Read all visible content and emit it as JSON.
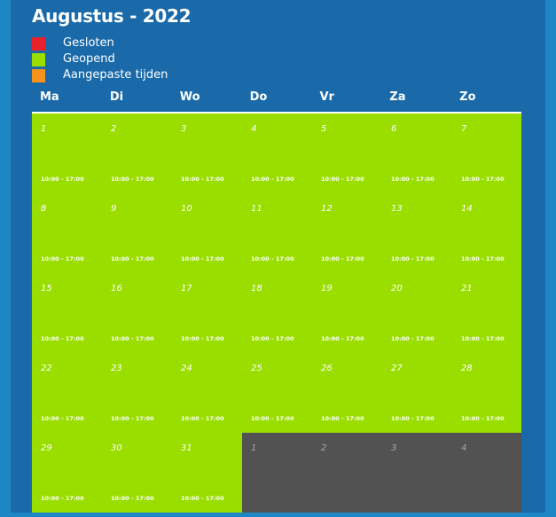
{
  "calendar": {
    "title": "Augustus - 2022",
    "legend": [
      {
        "label": "Gesloten",
        "color": "#e8212b"
      },
      {
        "label": "Geopend",
        "color": "#9ade00"
      },
      {
        "label": "Aangepaste tijden",
        "color": "#f5931e"
      }
    ],
    "weekdays": [
      "Ma",
      "Di",
      "Wo",
      "Do",
      "Vr",
      "Za",
      "Zo"
    ],
    "weeks": [
      [
        {
          "day": "1",
          "status": "open",
          "hours": "10:00 - 17:00"
        },
        {
          "day": "2",
          "status": "open",
          "hours": "10:00 - 17:00"
        },
        {
          "day": "3",
          "status": "open",
          "hours": "10:00 - 17:00"
        },
        {
          "day": "4",
          "status": "open",
          "hours": "10:00 - 17:00"
        },
        {
          "day": "5",
          "status": "open",
          "hours": "10:00 - 17:00"
        },
        {
          "day": "6",
          "status": "open",
          "hours": "10:00 - 17:00"
        },
        {
          "day": "7",
          "status": "open",
          "hours": "10:00 - 17:00"
        }
      ],
      [
        {
          "day": "8",
          "status": "open",
          "hours": "10:00 - 17:00"
        },
        {
          "day": "9",
          "status": "open",
          "hours": "10:00 - 17:00"
        },
        {
          "day": "10",
          "status": "open",
          "hours": "10:00 - 17:00"
        },
        {
          "day": "11",
          "status": "open",
          "hours": "10:00 - 17:00"
        },
        {
          "day": "12",
          "status": "open",
          "hours": "10:00 - 17:00"
        },
        {
          "day": "13",
          "status": "open",
          "hours": "10:00 - 17:00"
        },
        {
          "day": "14",
          "status": "open",
          "hours": "10:00 - 17:00"
        }
      ],
      [
        {
          "day": "15",
          "status": "open",
          "hours": "10:00 - 17:00"
        },
        {
          "day": "16",
          "status": "open",
          "hours": "10:00 - 17:00"
        },
        {
          "day": "17",
          "status": "open",
          "hours": "10:00 - 17:00"
        },
        {
          "day": "18",
          "status": "open",
          "hours": "10:00 - 17:00"
        },
        {
          "day": "19",
          "status": "open",
          "hours": "10:00 - 17:00"
        },
        {
          "day": "20",
          "status": "open",
          "hours": "10:00 - 17:00"
        },
        {
          "day": "21",
          "status": "open",
          "hours": "10:00 - 17:00"
        }
      ],
      [
        {
          "day": "22",
          "status": "open",
          "hours": "10:00 - 17:00"
        },
        {
          "day": "23",
          "status": "open",
          "hours": "10:00 - 17:00"
        },
        {
          "day": "24",
          "status": "open",
          "hours": "10:00 - 17:00"
        },
        {
          "day": "25",
          "status": "open",
          "hours": "10:00 - 17:00"
        },
        {
          "day": "26",
          "status": "open",
          "hours": "10:00 - 17:00"
        },
        {
          "day": "27",
          "status": "open",
          "hours": "10:00 - 17:00"
        },
        {
          "day": "28",
          "status": "open",
          "hours": "10:00 - 17:00"
        }
      ],
      [
        {
          "day": "29",
          "status": "open",
          "hours": "10:00 - 17:00"
        },
        {
          "day": "30",
          "status": "open",
          "hours": "10:00 - 17:00"
        },
        {
          "day": "31",
          "status": "open",
          "hours": "10:00 - 17:00"
        },
        {
          "day": "1",
          "status": "outside",
          "hours": ""
        },
        {
          "day": "2",
          "status": "outside",
          "hours": ""
        },
        {
          "day": "3",
          "status": "outside",
          "hours": ""
        },
        {
          "day": "4",
          "status": "outside",
          "hours": ""
        }
      ]
    ]
  },
  "colors": {
    "background": "#1a6aaa",
    "side_strips": "#1e86c4",
    "open": "#9ade00",
    "outside_month": "#525252",
    "text": "#ffffff"
  }
}
